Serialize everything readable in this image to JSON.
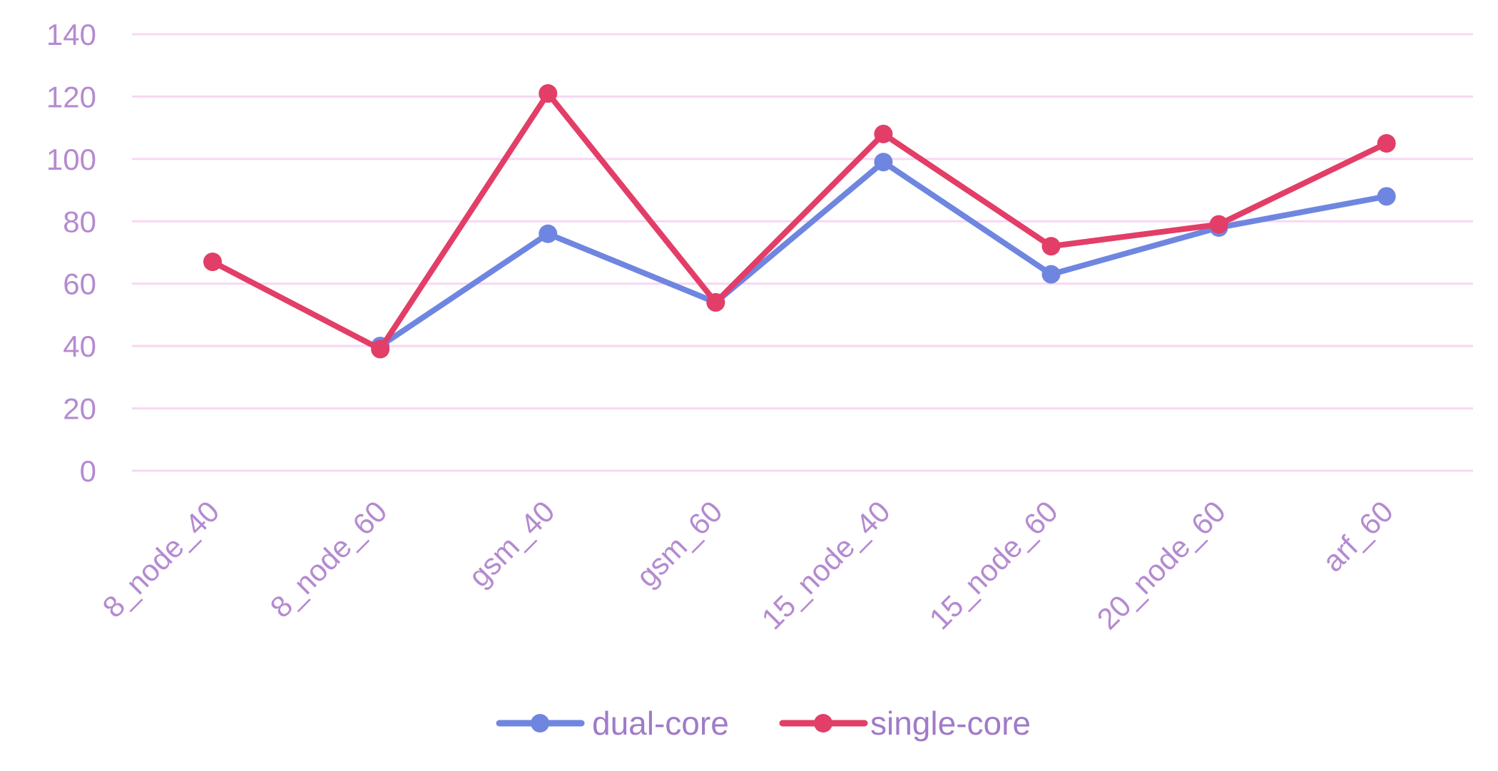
{
  "chart_data": {
    "type": "line",
    "categories": [
      "8_node_40",
      "8_node_60",
      "gsm_40",
      "gsm_60",
      "15_node_40",
      "15_node_60",
      "20_node_60",
      "arf_60"
    ],
    "series": [
      {
        "name": "dual-core",
        "color": "#6f86e0",
        "values": [
          null,
          40,
          76,
          54,
          99,
          63,
          78,
          88
        ]
      },
      {
        "name": "single-core",
        "color": "#e23e67",
        "values": [
          67,
          39,
          121,
          54,
          108,
          72,
          79,
          105
        ]
      }
    ],
    "yticks": [
      "0",
      "20",
      "40",
      "60",
      "80",
      "100",
      "120",
      "140"
    ],
    "ylim": [
      0,
      140
    ],
    "grid": true,
    "gridline_color": "#f8d7f2",
    "legend_position": "bottom",
    "title": "",
    "xlabel": "",
    "ylabel": ""
  }
}
